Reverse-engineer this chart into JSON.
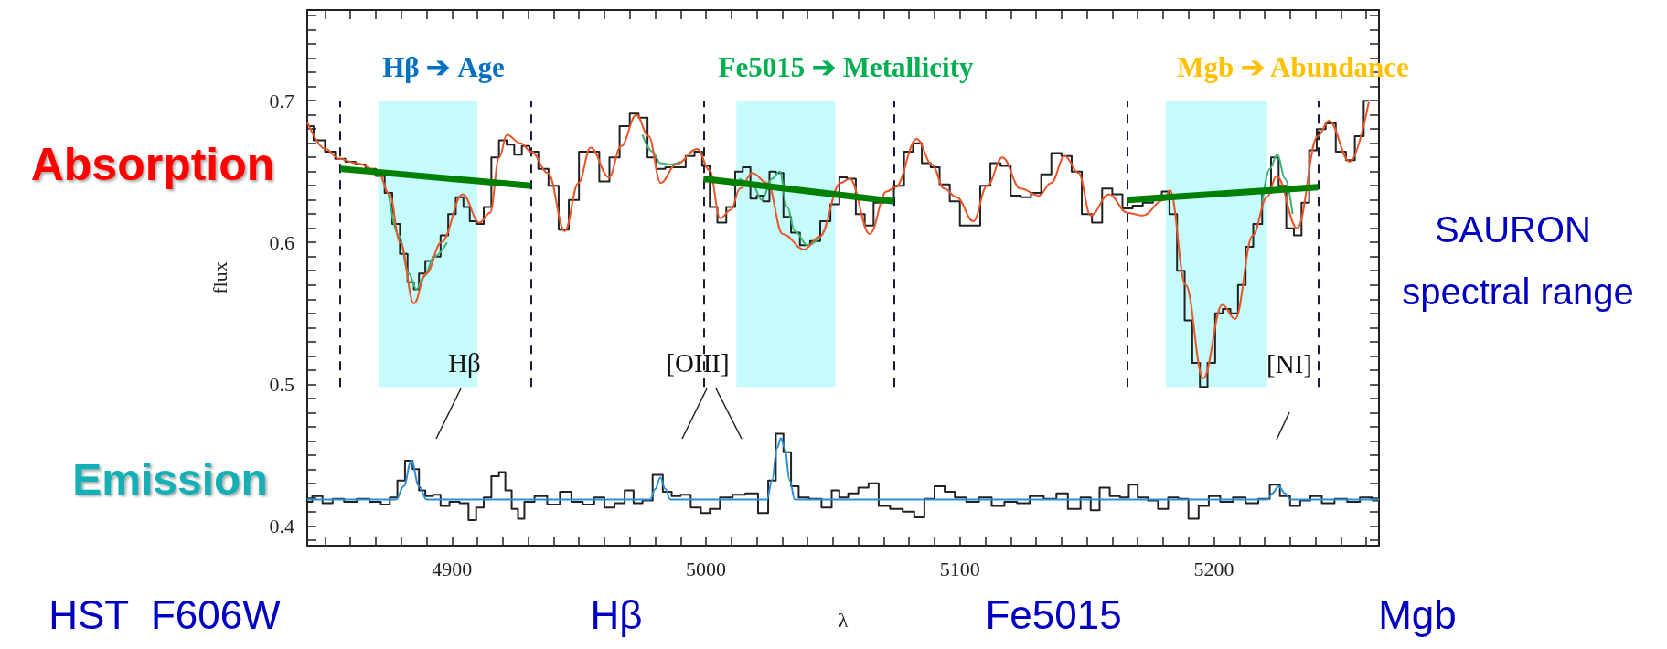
{
  "chart_data": {
    "type": "line",
    "xlabel": "λ",
    "ylabel": "flux",
    "xlim": [
      4843,
      5265
    ],
    "ylim": [
      0.386,
      0.764
    ],
    "marker": "none",
    "grid": false,
    "xticks": [
      {
        "value": 4850,
        "label": null
      },
      {
        "value": 4860,
        "label": null
      },
      {
        "value": 4870,
        "label": null
      },
      {
        "value": 4880,
        "label": null
      },
      {
        "value": 4890,
        "label": null
      },
      4900,
      {
        "value": 4910,
        "label": null
      },
      {
        "value": 4920,
        "label": null
      },
      {
        "value": 4930,
        "label": null
      },
      {
        "value": 4940,
        "label": null
      },
      {
        "value": 4950,
        "label": null
      },
      {
        "value": 4960,
        "label": null
      },
      {
        "value": 4970,
        "label": null
      },
      {
        "value": 4980,
        "label": null
      },
      {
        "value": 4990,
        "label": null
      },
      5000,
      {
        "value": 5010,
        "label": null
      },
      {
        "value": 5020,
        "label": null
      },
      {
        "value": 5030,
        "label": null
      },
      {
        "value": 5040,
        "label": null
      },
      {
        "value": 5050,
        "label": null
      },
      {
        "value": 5060,
        "label": null
      },
      {
        "value": 5070,
        "label": null
      },
      {
        "value": 5080,
        "label": null
      },
      {
        "value": 5090,
        "label": null
      },
      5100,
      {
        "value": 5110,
        "label": null
      },
      {
        "value": 5120,
        "label": null
      },
      {
        "value": 5130,
        "label": null
      },
      {
        "value": 5140,
        "label": null
      },
      {
        "value": 5150,
        "label": null
      },
      {
        "value": 5160,
        "label": null
      },
      {
        "value": 5170,
        "label": null
      },
      {
        "value": 5180,
        "label": null
      },
      {
        "value": 5190,
        "label": null
      },
      5200,
      {
        "value": 5210,
        "label": null
      },
      {
        "value": 5220,
        "label": null
      },
      {
        "value": 5230,
        "label": null
      },
      {
        "value": 5240,
        "label": null
      },
      {
        "value": 5250,
        "label": null
      },
      {
        "value": 5260,
        "label": null
      }
    ],
    "yticks": [
      {
        "value": 0.39,
        "label": null
      },
      0.4,
      {
        "value": 0.41,
        "label": null
      },
      {
        "value": 0.42,
        "label": null
      },
      {
        "value": 0.43,
        "label": null
      },
      {
        "value": 0.44,
        "label": null
      },
      {
        "value": 0.45,
        "label": null
      },
      {
        "value": 0.46,
        "label": null
      },
      {
        "value": 0.47,
        "label": null
      },
      {
        "value": 0.48,
        "label": null
      },
      {
        "value": 0.49,
        "label": null
      },
      0.5,
      {
        "value": 0.51,
        "label": null
      },
      {
        "value": 0.52,
        "label": null
      },
      {
        "value": 0.53,
        "label": null
      },
      {
        "value": 0.54,
        "label": null
      },
      {
        "value": 0.55,
        "label": null
      },
      {
        "value": 0.56,
        "label": null
      },
      {
        "value": 0.57,
        "label": null
      },
      {
        "value": 0.58,
        "label": null
      },
      {
        "value": 0.59,
        "label": null
      },
      0.6,
      {
        "value": 0.61,
        "label": null
      },
      {
        "value": 0.62,
        "label": null
      },
      {
        "value": 0.63,
        "label": null
      },
      {
        "value": 0.64,
        "label": null
      },
      {
        "value": 0.65,
        "label": null
      },
      {
        "value": 0.66,
        "label": null
      },
      {
        "value": 0.67,
        "label": null
      },
      {
        "value": 0.68,
        "label": null
      },
      {
        "value": 0.69,
        "label": null
      },
      0.7,
      {
        "value": 0.71,
        "label": null
      },
      {
        "value": 0.72,
        "label": null
      },
      {
        "value": 0.73,
        "label": null
      },
      {
        "value": 0.74,
        "label": null
      },
      {
        "value": 0.75,
        "label": null
      },
      {
        "value": 0.76,
        "label": null
      }
    ],
    "series": [
      {
        "type": "step",
        "color": "#222222",
        "x": [
          4843,
          4848,
          4852,
          4856,
          4860,
          4864,
          4868,
          4872,
          4875,
          4878,
          4881,
          4884,
          4886,
          4888,
          4891,
          4894,
          4897,
          4900,
          4903,
          4906,
          4908,
          4911,
          4914,
          4917,
          4920,
          4923,
          4926,
          4929,
          4932,
          4936,
          4940,
          4944,
          4948,
          4952,
          4956,
          4960,
          4964,
          4968,
          4972,
          4975,
          4979,
          4982,
          4986,
          4990,
          4994,
          4997,
          5000,
          5003,
          5006,
          5010,
          5013,
          5016,
          5019,
          5021,
          5024,
          5026,
          5029,
          5032,
          5035,
          5039,
          5043,
          5047,
          5051,
          5054,
          5057,
          5061,
          5064,
          5068,
          5072,
          5076,
          5080,
          5083,
          5087,
          5090,
          5094,
          5098,
          5102,
          5106,
          5110,
          5114,
          5118,
          5122,
          5126,
          5130,
          5134,
          5138,
          5142,
          5146,
          5150,
          5154,
          5158,
          5162,
          5166,
          5170,
          5174,
          5178,
          5181,
          5184,
          5187,
          5190,
          5193,
          5196,
          5199,
          5202,
          5205,
          5208,
          5211,
          5214,
          5217,
          5221,
          5224,
          5227,
          5230,
          5233,
          5236,
          5239,
          5242,
          5246,
          5250,
          5254,
          5257,
          5261
        ],
        "values": [
          0.682,
          0.672,
          0.664,
          0.659,
          0.657,
          0.655,
          0.652,
          0.647,
          0.635,
          0.613,
          0.592,
          0.572,
          0.567,
          0.578,
          0.587,
          0.59,
          0.605,
          0.62,
          0.632,
          0.625,
          0.615,
          0.613,
          0.625,
          0.66,
          0.672,
          0.669,
          0.662,
          0.668,
          0.664,
          0.652,
          0.64,
          0.609,
          0.63,
          0.664,
          0.664,
          0.643,
          0.66,
          0.682,
          0.691,
          0.688,
          0.66,
          0.652,
          0.653,
          0.653,
          0.661,
          0.664,
          0.654,
          0.625,
          0.614,
          0.625,
          0.65,
          0.653,
          0.631,
          0.633,
          0.629,
          0.65,
          0.649,
          0.618,
          0.607,
          0.598,
          0.601,
          0.615,
          0.627,
          0.646,
          0.645,
          0.62,
          0.612,
          0.628,
          0.63,
          0.64,
          0.664,
          0.67,
          0.656,
          0.653,
          0.641,
          0.629,
          0.612,
          0.612,
          0.64,
          0.656,
          0.654,
          0.633,
          0.632,
          0.635,
          0.648,
          0.663,
          0.661,
          0.65,
          0.62,
          0.614,
          0.638,
          0.634,
          0.624,
          0.626,
          0.628,
          0.63,
          0.636,
          0.62,
          0.58,
          0.545,
          0.515,
          0.498,
          0.515,
          0.55,
          0.553,
          0.55,
          0.57,
          0.597,
          0.613,
          0.635,
          0.66,
          0.64,
          0.61,
          0.605,
          0.628,
          0.665,
          0.68,
          0.684,
          0.664,
          0.658,
          0.675,
          0.7
        ]
      },
      {
        "color": "#3cb371",
        "x": [
          4875,
          4879,
          4883,
          4886,
          4889,
          4893,
          4898,
          4900,
          4975,
          4979,
          4982,
          4986,
          4990,
          5000,
          5013,
          5018,
          5022,
          5026,
          5029,
          5032,
          5035,
          5040,
          5045,
          5050,
          5219,
          5222,
          5225,
          5228,
          5231
        ],
        "values": [
          0.635,
          0.605,
          0.578,
          0.567,
          0.576,
          0.59,
          0.6,
          null,
          0.676,
          0.664,
          0.656,
          0.655,
          0.657,
          null,
          0.645,
          0.642,
          0.63,
          0.645,
          0.65,
          0.625,
          0.608,
          0.598,
          0.604,
          null,
          0.628,
          0.652,
          0.662,
          0.645,
          0.62
        ]
      },
      {
        "color": "#e8552a",
        "x": [
          4843,
          4850.2,
          4855.6,
          4862.2,
          4870.6,
          4875.4,
          4879.6,
          4885,
          4889.8,
          4895.8,
          4904.2,
          4910.8,
          4915,
          4918.6,
          4921.6,
          4927,
          4931.2,
          4937.8,
          4944.4,
          4949.8,
          4954.6,
          4961.8,
          4966.6,
          4972.6,
          4977.4,
          4982.2,
          4988.2,
          4996.6,
          5001.4,
          5005.6,
          5009.8,
          5013.4,
          5018.2,
          5024.2,
          5030.2,
          5038.6,
          5044.7,
          5053,
          5056.6,
          5064.5,
          5071.1,
          5074.6,
          5083,
          5089,
          5093.8,
          5098.7,
          5105.3,
          5110.7,
          5116.7,
          5123.9,
          5131.1,
          5135.9,
          5141.3,
          5146.7,
          5151.5,
          5158.7,
          5165.9,
          5171.9,
          5180.3,
          5182.7,
          5188.9,
          5195.8,
          5203.3,
          5208.4,
          5215.3,
          5220.9,
          5224.7,
          5232.8,
          5240.9,
          5245.3,
          5253.5,
          5261
        ],
        "values": [
          0.685,
          0.666,
          0.659,
          0.656,
          0.651,
          0.634,
          0.6,
          0.557,
          0.578,
          0.6,
          0.634,
          0.614,
          0.621,
          0.66,
          0.676,
          0.67,
          0.664,
          0.649,
          0.608,
          0.642,
          0.667,
          0.646,
          0.668,
          0.69,
          0.675,
          0.642,
          0.655,
          0.666,
          0.651,
          0.617,
          0.623,
          0.638,
          0.649,
          0.642,
          0.606,
          0.595,
          0.604,
          0.642,
          0.645,
          0.606,
          0.636,
          0.639,
          0.673,
          0.655,
          0.638,
          0.632,
          0.615,
          0.64,
          0.66,
          0.638,
          0.633,
          0.642,
          0.661,
          0.649,
          0.619,
          0.634,
          0.621,
          0.619,
          0.63,
          0.637,
          0.57,
          0.504,
          0.556,
          0.546,
          0.605,
          0.632,
          0.647,
          0.61,
          0.675,
          0.686,
          0.657,
          0.699
        ]
      },
      {
        "color": "#008000",
        "x": [
          4856,
          4931
        ],
        "values": [
          0.652,
          0.64
        ]
      },
      {
        "color": "#008000",
        "x": [
          4999,
          5074
        ],
        "values": [
          0.645,
          0.629
        ]
      },
      {
        "color": "#008000",
        "x": [
          5166,
          5241
        ],
        "values": [
          0.63,
          0.639
        ]
      },
      {
        "type": "step",
        "color": "#222222",
        "x": [
          4843,
          4847,
          4851,
          4855,
          4860,
          4865,
          4870,
          4874,
          4877,
          4880,
          4883,
          4886,
          4888,
          4891,
          4894,
          4897,
          4901,
          4905,
          4908,
          4911,
          4914,
          4917,
          4920,
          4922,
          4925,
          4927,
          4930,
          4935,
          4940,
          4945,
          4949,
          4954,
          4958,
          4962,
          4966,
          4970,
          4973,
          4977,
          4981,
          4985,
          4988,
          4992,
          4996,
          5000,
          5003,
          5008,
          5013,
          5018,
          5023,
          5026,
          5029,
          5032,
          5035,
          5038,
          5043,
          5048,
          5051,
          5054,
          5058,
          5062,
          5066,
          5070,
          5075,
          5080,
          5084,
          5088,
          5092,
          5096,
          5100,
          5105,
          5110,
          5115,
          5120,
          5125,
          5130,
          5136,
          5140,
          5145,
          5150,
          5153,
          5157,
          5161,
          5165,
          5168,
          5172,
          5176,
          5180,
          5184,
          5188,
          5192,
          5196,
          5200,
          5205,
          5210,
          5215,
          5220,
          5224,
          5228,
          5232,
          5236,
          5240,
          5245,
          5250,
          5255,
          5260,
          5265
        ],
        "values": [
          0.417,
          0.421,
          0.416,
          0.419,
          0.417,
          0.419,
          0.417,
          0.415,
          0.42,
          0.432,
          0.446,
          0.44,
          0.425,
          0.421,
          0.422,
          0.414,
          0.417,
          0.416,
          0.404,
          0.413,
          0.42,
          0.435,
          0.438,
          0.425,
          0.412,
          0.405,
          0.417,
          0.421,
          0.415,
          0.424,
          0.417,
          0.415,
          0.42,
          0.413,
          0.416,
          0.425,
          0.416,
          0.418,
          0.436,
          0.424,
          0.421,
          0.422,
          0.413,
          0.409,
          0.412,
          0.42,
          0.422,
          0.423,
          0.409,
          0.432,
          0.465,
          0.452,
          0.428,
          0.42,
          0.419,
          0.413,
          0.425,
          0.42,
          0.423,
          0.427,
          0.43,
          0.414,
          0.412,
          0.41,
          0.406,
          0.419,
          0.428,
          0.424,
          0.42,
          0.417,
          0.42,
          0.414,
          0.417,
          0.416,
          0.421,
          0.419,
          0.423,
          0.412,
          0.42,
          0.411,
          0.427,
          0.421,
          0.42,
          0.429,
          0.42,
          0.418,
          0.412,
          0.42,
          0.419,
          0.405,
          0.414,
          0.421,
          0.417,
          0.42,
          0.416,
          0.419,
          0.429,
          0.421,
          0.414,
          0.418,
          0.421,
          0.416,
          0.419,
          0.417,
          0.42,
          0.418
        ]
      },
      {
        "color": "#2a8fd6",
        "x": [
          4843,
          4878,
          4881,
          4884,
          4887,
          4890,
          4978,
          4980,
          4982,
          4984,
          4986,
          5024,
          5026,
          5028,
          5029.5,
          5031,
          5033,
          5035,
          5221,
          5223,
          5225.5,
          5228,
          5230,
          5265
        ],
        "values": [
          0.4185,
          0.4185,
          0.428,
          0.446,
          0.428,
          0.4185,
          0.4185,
          0.426,
          0.434,
          0.426,
          0.4185,
          0.4185,
          0.432,
          0.455,
          0.462,
          0.455,
          0.432,
          0.4185,
          0.4185,
          0.423,
          0.428,
          0.423,
          0.4185,
          0.4185
        ]
      }
    ],
    "bands": [
      {
        "axis": "x",
        "from": 4871,
        "to": 4910,
        "color": "#c6fcfc"
      },
      {
        "axis": "x",
        "from": 5012,
        "to": 5051,
        "color": "#c6fcfc"
      },
      {
        "axis": "x",
        "from": 5181,
        "to": 5221,
        "color": "#c6fcfc"
      }
    ],
    "ref_lines": [
      {
        "axis": "x",
        "value": 4856,
        "color": "#1a1a3a",
        "line_style": "dashed"
      },
      {
        "axis": "x",
        "value": 4931,
        "color": "#1a1a3a",
        "line_style": "dashed"
      },
      {
        "axis": "x",
        "value": 4999,
        "color": "#1a1a3a",
        "line_style": "dashed"
      },
      {
        "axis": "x",
        "value": 5074,
        "color": "#1a1a3a",
        "line_style": "dashed"
      },
      {
        "axis": "x",
        "value": 5166,
        "color": "#1a1a3a",
        "line_style": "dashed"
      },
      {
        "axis": "x",
        "value": 5241,
        "color": "#1a1a3a",
        "line_style": "dashed"
      }
    ],
    "annotations": [
      "Hβ ➔ Age",
      "Fe5015 ➔ Metallicity",
      "Mgb ➔ Abundance",
      "Hβ",
      "[OIII]",
      "[NI]",
      "Absorption",
      "Emission",
      "SAURON spectral range",
      "HST  F606W",
      "Hβ",
      "Fe5015",
      "Mgb"
    ]
  }
}
